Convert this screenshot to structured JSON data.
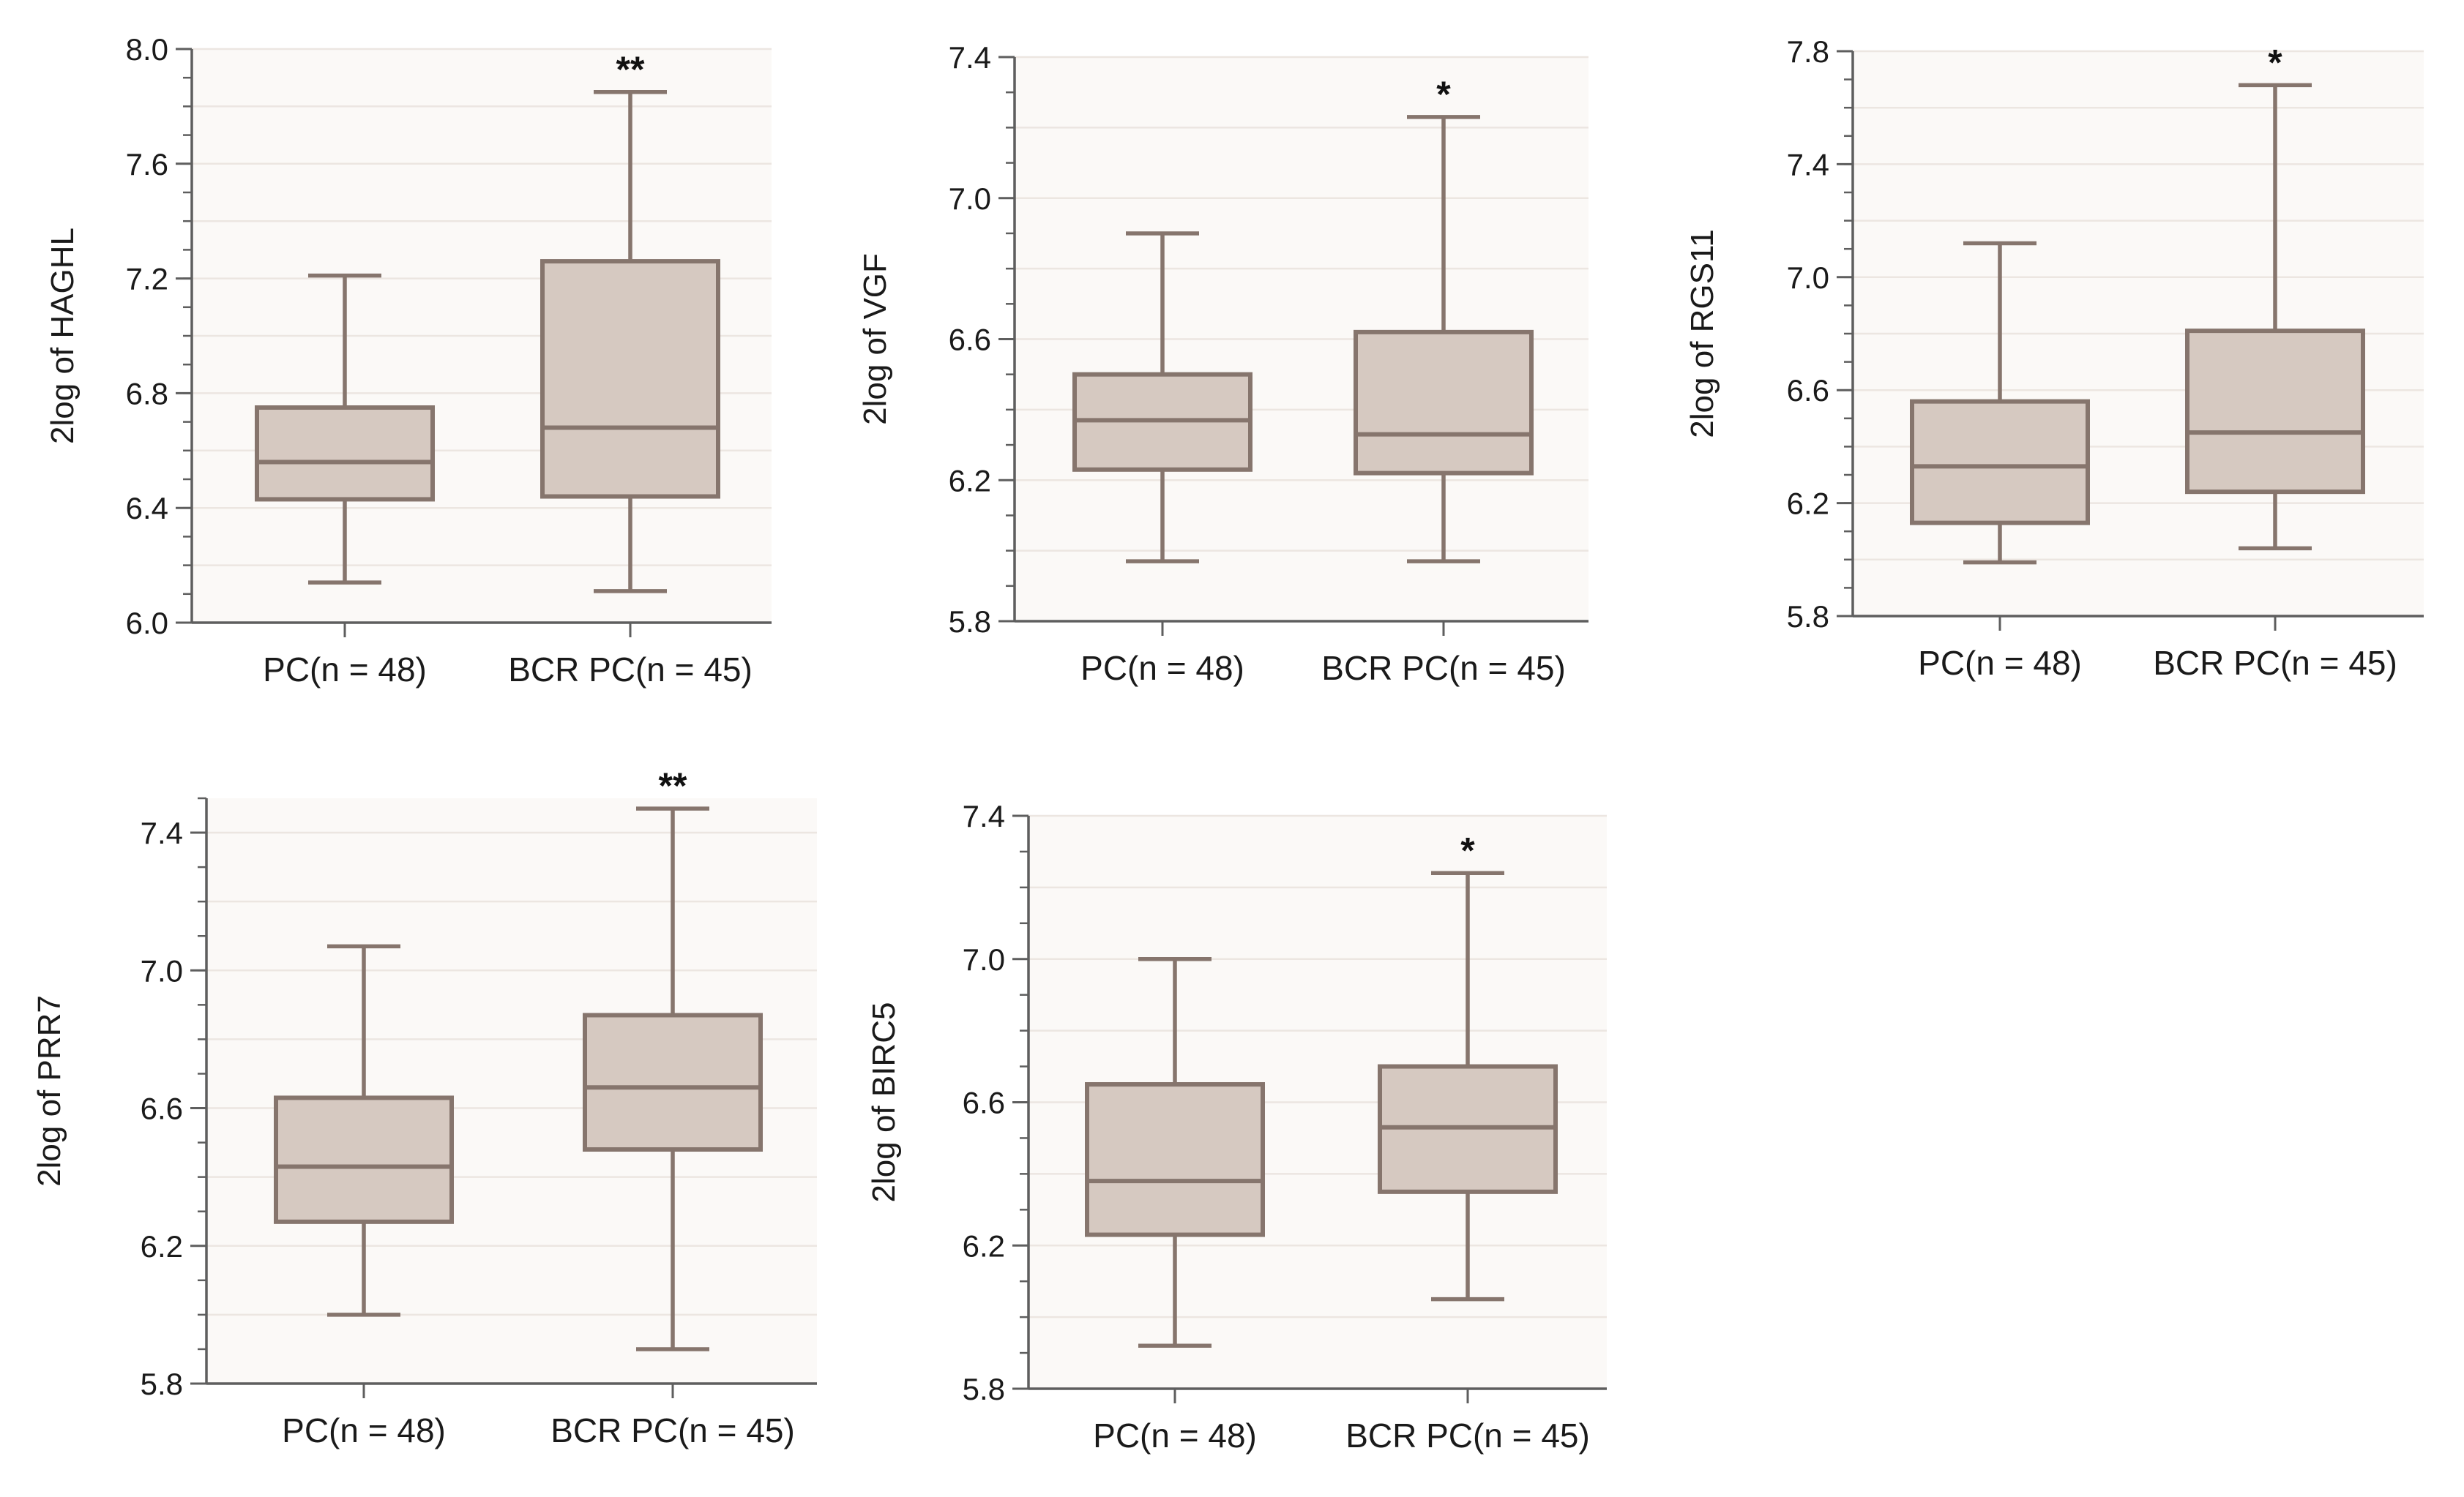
{
  "chart_data": [
    {
      "type": "boxplot",
      "ylabel": "2log of HAGHL",
      "ylim": [
        6.0,
        8.0
      ],
      "yticks": [
        6.0,
        6.4,
        6.8,
        7.2,
        7.6,
        8.0
      ],
      "ytick_labels": [
        "6.0",
        "6.4",
        "6.8",
        "7.2",
        "7.6",
        "8.0"
      ],
      "grid": true,
      "categories": [
        "PC(n = 48)",
        "BCR PC(n = 45)"
      ],
      "boxes": [
        {
          "min": 6.14,
          "q1": 6.43,
          "median": 6.56,
          "q3": 6.75,
          "max": 7.21,
          "significance": ""
        },
        {
          "min": 6.11,
          "q1": 6.44,
          "median": 6.68,
          "q3": 7.26,
          "max": 7.85,
          "significance": "**"
        }
      ]
    },
    {
      "type": "boxplot",
      "ylabel": "2log of VGF",
      "ylim": [
        5.8,
        7.4
      ],
      "yticks": [
        5.8,
        6.2,
        6.6,
        7.0,
        7.4
      ],
      "ytick_labels": [
        "5.8",
        "6.2",
        "6.6",
        "7.0",
        "7.4"
      ],
      "grid": true,
      "categories": [
        "PC(n = 48)",
        "BCR PC(n = 45)"
      ],
      "boxes": [
        {
          "min": 5.97,
          "q1": 6.23,
          "median": 6.37,
          "q3": 6.5,
          "max": 6.9,
          "significance": ""
        },
        {
          "min": 5.97,
          "q1": 6.22,
          "median": 6.33,
          "q3": 6.62,
          "max": 7.23,
          "significance": "*"
        }
      ]
    },
    {
      "type": "boxplot",
      "ylabel": "2log of RGS11",
      "ylim": [
        5.8,
        7.8
      ],
      "yticks": [
        5.8,
        6.2,
        6.6,
        7.0,
        7.4,
        7.8
      ],
      "ytick_labels": [
        "5.8",
        "6.2",
        "6.6",
        "7.0",
        "7.4",
        "7.8"
      ],
      "grid": true,
      "categories": [
        "PC(n = 48)",
        "BCR PC(n = 45)"
      ],
      "boxes": [
        {
          "min": 5.99,
          "q1": 6.13,
          "median": 6.33,
          "q3": 6.56,
          "max": 7.12,
          "significance": ""
        },
        {
          "min": 6.04,
          "q1": 6.24,
          "median": 6.45,
          "q3": 6.81,
          "max": 7.68,
          "significance": "*"
        }
      ]
    },
    {
      "type": "boxplot",
      "ylabel": "2log of PRR7",
      "ylim": [
        5.8,
        7.5
      ],
      "yticks": [
        5.8,
        6.2,
        6.6,
        7.0,
        7.4
      ],
      "ytick_labels": [
        "5.8",
        "6.2",
        "6.6",
        "7.0",
        "7.4"
      ],
      "grid": true,
      "categories": [
        "PC(n = 48)",
        "BCR PC(n = 45)"
      ],
      "boxes": [
        {
          "min": 6.0,
          "q1": 6.27,
          "median": 6.43,
          "q3": 6.63,
          "max": 7.07,
          "significance": ""
        },
        {
          "min": 5.9,
          "q1": 6.48,
          "median": 6.66,
          "q3": 6.87,
          "max": 7.47,
          "significance": "**"
        }
      ]
    },
    {
      "type": "boxplot",
      "ylabel": "2log of BIRC5",
      "ylim": [
        5.8,
        7.4
      ],
      "yticks": [
        5.8,
        6.2,
        6.6,
        7.0,
        7.4
      ],
      "ytick_labels": [
        "5.8",
        "6.2",
        "6.6",
        "7.0",
        "7.4"
      ],
      "grid": true,
      "categories": [
        "PC(n = 48)",
        "BCR PC(n = 45)"
      ],
      "boxes": [
        {
          "min": 5.92,
          "q1": 6.23,
          "median": 6.38,
          "q3": 6.65,
          "max": 7.0,
          "significance": ""
        },
        {
          "min": 6.05,
          "q1": 6.35,
          "median": 6.53,
          "q3": 6.7,
          "max": 7.24,
          "significance": "*"
        }
      ]
    }
  ]
}
